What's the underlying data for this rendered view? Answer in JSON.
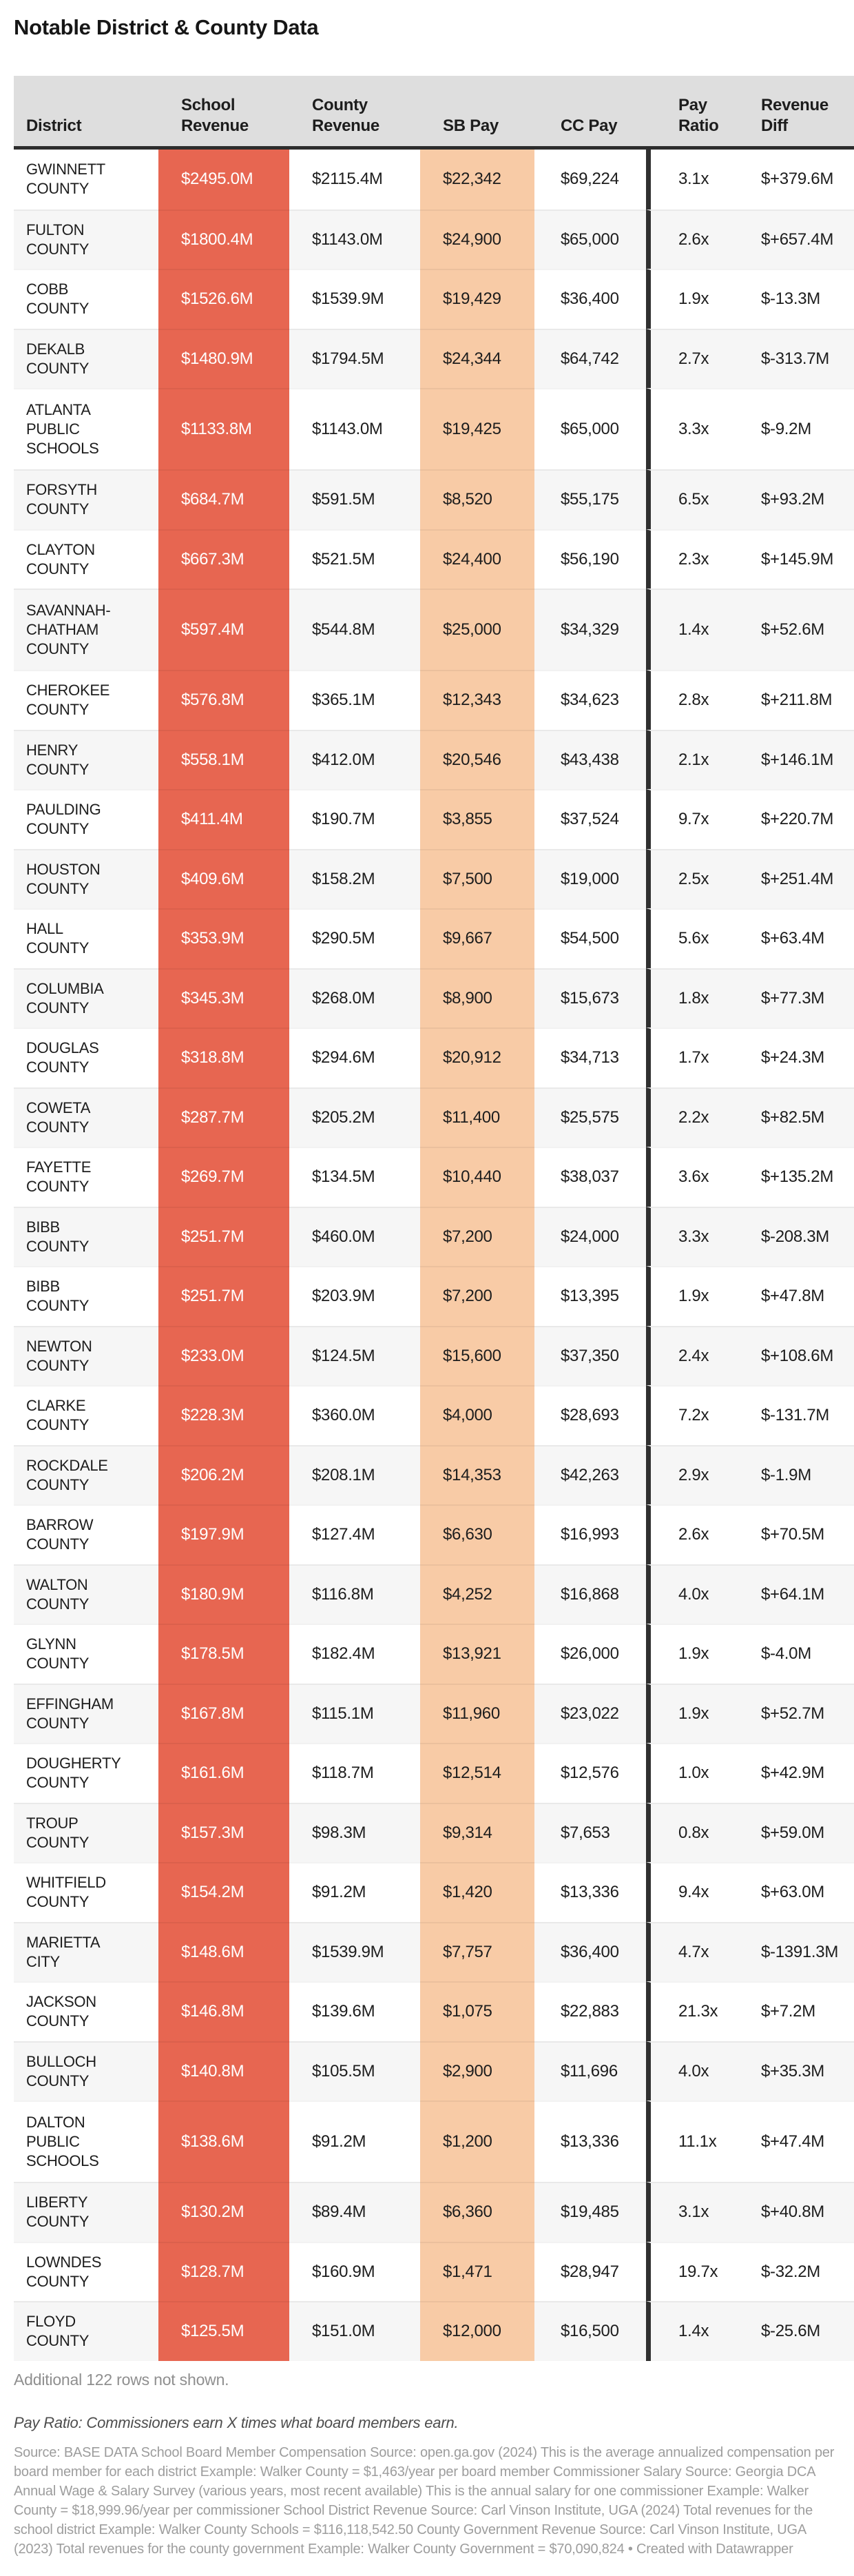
{
  "title": "Notable District & County Data",
  "chart_data": {
    "type": "table",
    "columns": [
      {
        "id": "district",
        "label": "District"
      },
      {
        "id": "school_revenue",
        "label": "School\nRevenue"
      },
      {
        "id": "county_revenue",
        "label": "County\nRevenue"
      },
      {
        "id": "sb_pay",
        "label": "SB Pay"
      },
      {
        "id": "cc_pay",
        "label": "CC Pay"
      },
      {
        "id": "pay_ratio",
        "label": "Pay\nRatio"
      },
      {
        "id": "revenue_diff",
        "label": "Revenue\nDiff"
      }
    ],
    "rows": [
      {
        "district": "GWINNETT COUNTY",
        "school_revenue": "$2495.0M",
        "county_revenue": "$2115.4M",
        "sb_pay": "$22,342",
        "cc_pay": "$69,224",
        "pay_ratio": "3.1x",
        "revenue_diff": "$+379.6M"
      },
      {
        "district": "FULTON COUNTY",
        "school_revenue": "$1800.4M",
        "county_revenue": "$1143.0M",
        "sb_pay": "$24,900",
        "cc_pay": "$65,000",
        "pay_ratio": "2.6x",
        "revenue_diff": "$+657.4M"
      },
      {
        "district": "COBB COUNTY",
        "school_revenue": "$1526.6M",
        "county_revenue": "$1539.9M",
        "sb_pay": "$19,429",
        "cc_pay": "$36,400",
        "pay_ratio": "1.9x",
        "revenue_diff": "$-13.3M"
      },
      {
        "district": "DEKALB COUNTY",
        "school_revenue": "$1480.9M",
        "county_revenue": "$1794.5M",
        "sb_pay": "$24,344",
        "cc_pay": "$64,742",
        "pay_ratio": "2.7x",
        "revenue_diff": "$-313.7M"
      },
      {
        "district": "ATLANTA PUBLIC SCHOOLS",
        "school_revenue": "$1133.8M",
        "county_revenue": "$1143.0M",
        "sb_pay": "$19,425",
        "cc_pay": "$65,000",
        "pay_ratio": "3.3x",
        "revenue_diff": "$-9.2M"
      },
      {
        "district": "FORSYTH COUNTY",
        "school_revenue": "$684.7M",
        "county_revenue": "$591.5M",
        "sb_pay": "$8,520",
        "cc_pay": "$55,175",
        "pay_ratio": "6.5x",
        "revenue_diff": "$+93.2M"
      },
      {
        "district": "CLAYTON COUNTY",
        "school_revenue": "$667.3M",
        "county_revenue": "$521.5M",
        "sb_pay": "$24,400",
        "cc_pay": "$56,190",
        "pay_ratio": "2.3x",
        "revenue_diff": "$+145.9M"
      },
      {
        "district": "SAVANNAH-CHATHAM COUNTY",
        "school_revenue": "$597.4M",
        "county_revenue": "$544.8M",
        "sb_pay": "$25,000",
        "cc_pay": "$34,329",
        "pay_ratio": "1.4x",
        "revenue_diff": "$+52.6M"
      },
      {
        "district": "CHEROKEE COUNTY",
        "school_revenue": "$576.8M",
        "county_revenue": "$365.1M",
        "sb_pay": "$12,343",
        "cc_pay": "$34,623",
        "pay_ratio": "2.8x",
        "revenue_diff": "$+211.8M"
      },
      {
        "district": "HENRY COUNTY",
        "school_revenue": "$558.1M",
        "county_revenue": "$412.0M",
        "sb_pay": "$20,546",
        "cc_pay": "$43,438",
        "pay_ratio": "2.1x",
        "revenue_diff": "$+146.1M"
      },
      {
        "district": "PAULDING COUNTY",
        "school_revenue": "$411.4M",
        "county_revenue": "$190.7M",
        "sb_pay": "$3,855",
        "cc_pay": "$37,524",
        "pay_ratio": "9.7x",
        "revenue_diff": "$+220.7M"
      },
      {
        "district": "HOUSTON COUNTY",
        "school_revenue": "$409.6M",
        "county_revenue": "$158.2M",
        "sb_pay": "$7,500",
        "cc_pay": "$19,000",
        "pay_ratio": "2.5x",
        "revenue_diff": "$+251.4M"
      },
      {
        "district": "HALL COUNTY",
        "school_revenue": "$353.9M",
        "county_revenue": "$290.5M",
        "sb_pay": "$9,667",
        "cc_pay": "$54,500",
        "pay_ratio": "5.6x",
        "revenue_diff": "$+63.4M"
      },
      {
        "district": "COLUMBIA COUNTY",
        "school_revenue": "$345.3M",
        "county_revenue": "$268.0M",
        "sb_pay": "$8,900",
        "cc_pay": "$15,673",
        "pay_ratio": "1.8x",
        "revenue_diff": "$+77.3M"
      },
      {
        "district": "DOUGLAS COUNTY",
        "school_revenue": "$318.8M",
        "county_revenue": "$294.6M",
        "sb_pay": "$20,912",
        "cc_pay": "$34,713",
        "pay_ratio": "1.7x",
        "revenue_diff": "$+24.3M"
      },
      {
        "district": "COWETA COUNTY",
        "school_revenue": "$287.7M",
        "county_revenue": "$205.2M",
        "sb_pay": "$11,400",
        "cc_pay": "$25,575",
        "pay_ratio": "2.2x",
        "revenue_diff": "$+82.5M"
      },
      {
        "district": "FAYETTE COUNTY",
        "school_revenue": "$269.7M",
        "county_revenue": "$134.5M",
        "sb_pay": "$10,440",
        "cc_pay": "$38,037",
        "pay_ratio": "3.6x",
        "revenue_diff": "$+135.2M"
      },
      {
        "district": "BIBB COUNTY",
        "school_revenue": "$251.7M",
        "county_revenue": "$460.0M",
        "sb_pay": "$7,200",
        "cc_pay": "$24,000",
        "pay_ratio": "3.3x",
        "revenue_diff": "$-208.3M"
      },
      {
        "district": "BIBB COUNTY",
        "school_revenue": "$251.7M",
        "county_revenue": "$203.9M",
        "sb_pay": "$7,200",
        "cc_pay": "$13,395",
        "pay_ratio": "1.9x",
        "revenue_diff": "$+47.8M"
      },
      {
        "district": "NEWTON COUNTY",
        "school_revenue": "$233.0M",
        "county_revenue": "$124.5M",
        "sb_pay": "$15,600",
        "cc_pay": "$37,350",
        "pay_ratio": "2.4x",
        "revenue_diff": "$+108.6M"
      },
      {
        "district": "CLARKE COUNTY",
        "school_revenue": "$228.3M",
        "county_revenue": "$360.0M",
        "sb_pay": "$4,000",
        "cc_pay": "$28,693",
        "pay_ratio": "7.2x",
        "revenue_diff": "$-131.7M"
      },
      {
        "district": "ROCKDALE COUNTY",
        "school_revenue": "$206.2M",
        "county_revenue": "$208.1M",
        "sb_pay": "$14,353",
        "cc_pay": "$42,263",
        "pay_ratio": "2.9x",
        "revenue_diff": "$-1.9M"
      },
      {
        "district": "BARROW COUNTY",
        "school_revenue": "$197.9M",
        "county_revenue": "$127.4M",
        "sb_pay": "$6,630",
        "cc_pay": "$16,993",
        "pay_ratio": "2.6x",
        "revenue_diff": "$+70.5M"
      },
      {
        "district": "WALTON COUNTY",
        "school_revenue": "$180.9M",
        "county_revenue": "$116.8M",
        "sb_pay": "$4,252",
        "cc_pay": "$16,868",
        "pay_ratio": "4.0x",
        "revenue_diff": "$+64.1M"
      },
      {
        "district": "GLYNN COUNTY",
        "school_revenue": "$178.5M",
        "county_revenue": "$182.4M",
        "sb_pay": "$13,921",
        "cc_pay": "$26,000",
        "pay_ratio": "1.9x",
        "revenue_diff": "$-4.0M"
      },
      {
        "district": "EFFINGHAM COUNTY",
        "school_revenue": "$167.8M",
        "county_revenue": "$115.1M",
        "sb_pay": "$11,960",
        "cc_pay": "$23,022",
        "pay_ratio": "1.9x",
        "revenue_diff": "$+52.7M"
      },
      {
        "district": "DOUGHERTY COUNTY",
        "school_revenue": "$161.6M",
        "county_revenue": "$118.7M",
        "sb_pay": "$12,514",
        "cc_pay": "$12,576",
        "pay_ratio": "1.0x",
        "revenue_diff": "$+42.9M"
      },
      {
        "district": "TROUP COUNTY",
        "school_revenue": "$157.3M",
        "county_revenue": "$98.3M",
        "sb_pay": "$9,314",
        "cc_pay": "$7,653",
        "pay_ratio": "0.8x",
        "revenue_diff": "$+59.0M"
      },
      {
        "district": "WHITFIELD COUNTY",
        "school_revenue": "$154.2M",
        "county_revenue": "$91.2M",
        "sb_pay": "$1,420",
        "cc_pay": "$13,336",
        "pay_ratio": "9.4x",
        "revenue_diff": "$+63.0M"
      },
      {
        "district": "MARIETTA CITY",
        "school_revenue": "$148.6M",
        "county_revenue": "$1539.9M",
        "sb_pay": "$7,757",
        "cc_pay": "$36,400",
        "pay_ratio": "4.7x",
        "revenue_diff": "$-1391.3M"
      },
      {
        "district": "JACKSON COUNTY",
        "school_revenue": "$146.8M",
        "county_revenue": "$139.6M",
        "sb_pay": "$1,075",
        "cc_pay": "$22,883",
        "pay_ratio": "21.3x",
        "revenue_diff": "$+7.2M"
      },
      {
        "district": "BULLOCH COUNTY",
        "school_revenue": "$140.8M",
        "county_revenue": "$105.5M",
        "sb_pay": "$2,900",
        "cc_pay": "$11,696",
        "pay_ratio": "4.0x",
        "revenue_diff": "$+35.3M"
      },
      {
        "district": "DALTON PUBLIC SCHOOLS",
        "school_revenue": "$138.6M",
        "county_revenue": "$91.2M",
        "sb_pay": "$1,200",
        "cc_pay": "$13,336",
        "pay_ratio": "11.1x",
        "revenue_diff": "$+47.4M"
      },
      {
        "district": "LIBERTY COUNTY",
        "school_revenue": "$130.2M",
        "county_revenue": "$89.4M",
        "sb_pay": "$6,360",
        "cc_pay": "$19,485",
        "pay_ratio": "3.1x",
        "revenue_diff": "$+40.8M"
      },
      {
        "district": "LOWNDES COUNTY",
        "school_revenue": "$128.7M",
        "county_revenue": "$160.9M",
        "sb_pay": "$1,471",
        "cc_pay": "$28,947",
        "pay_ratio": "19.7x",
        "revenue_diff": "$-32.2M"
      },
      {
        "district": "FLOYD COUNTY",
        "school_revenue": "$125.5M",
        "county_revenue": "$151.0M",
        "sb_pay": "$12,000",
        "cc_pay": "$16,500",
        "pay_ratio": "1.4x",
        "revenue_diff": "$-25.6M"
      }
    ]
  },
  "table_note": "Additional 122 rows not shown.",
  "footnote": "Pay Ratio: Commissioners earn X times what board members earn.",
  "source": "Source: BASE DATA School Board Member Compensation Source: open.ga.gov (2024) This is the average annualized compensation per board member for each district Example: Walker County = $1,463/year per board member Commissioner Salary Source: Georgia DCA Annual Wage & Salary Survey (various years, most recent available) This is the annual salary for one commissioner Example: Walker County = $18,999.96/year per commissioner School District Revenue Source: Carl Vinson Institute, UGA (2024) Total revenues for the school district Example: Walker County Schools = $116,118,542.50 County Government Revenue Source: Carl Vinson Institute, UGA (2023) Total revenues for the county government Example: Walker County Government = $70,090,824 • Created with Datawrapper",
  "colors": {
    "school_revenue_bg": "#e76651",
    "school_revenue_text": "#ffffff",
    "sb_pay_bg": "#f8cba6",
    "header_bg": "#dedede",
    "row_stripe": "#f6f6f6",
    "divider": "#303030",
    "body_text": "#1d1d1d"
  }
}
